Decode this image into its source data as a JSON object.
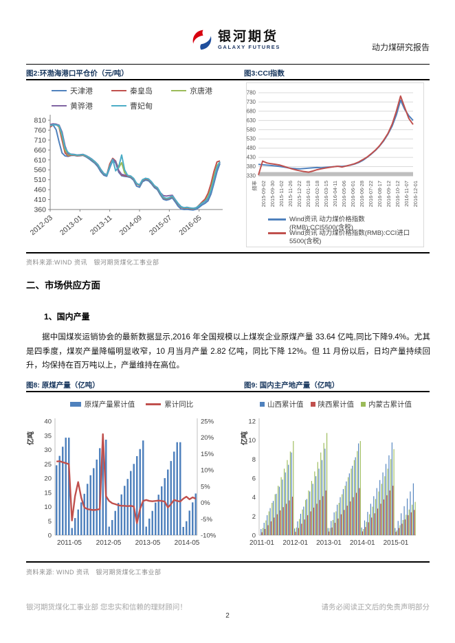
{
  "header": {
    "brand_cn": "银河期货",
    "brand_en": "GALAXY FUTURES",
    "report_type": "动力煤研究报告"
  },
  "sections": {
    "heading": "二、市场供应方面",
    "subheading": "1、国内产量",
    "paragraph": "据中国煤炭运销协会的最新数据显示,2016 年全国规模以上煤炭企业原煤产量 33.64 亿吨,同比下降9.4%。尤其是四季度，煤炭产量降幅明显收窄，10 月当月产量 2.82 亿吨，同比下降 12%。但 11 月份以后，日均产量持续回升，均保持在百万吨以上，产量维持在高位。"
  },
  "source_note_top": "资料来源:WIND 资讯　银河期货煤化工事业部",
  "source_note_bottom": "资料来源: WIND 资讯　银河期货煤化工事业部",
  "footer": {
    "left": "银河期货煤化工事业部 您忠实和信赖的理财顾问！",
    "right": "请务必阅读正文后的免责声明部分",
    "page": "2"
  },
  "chart_data": [
    {
      "id": "port-price",
      "type": "line",
      "title": "图2:环渤海港口平仓价（元/吨）",
      "ylim": [
        360,
        810
      ],
      "ystep": 50,
      "grid": false,
      "legend_position": "top",
      "n": 58,
      "xticks": [
        {
          "label": "2012-03",
          "i": 0
        },
        {
          "label": "2013-01",
          "i": 10
        },
        {
          "label": "2013-11",
          "i": 20
        },
        {
          "label": "2014-09",
          "i": 30
        },
        {
          "label": "2015-07",
          "i": 40
        },
        {
          "label": "2016-05",
          "i": 50
        }
      ],
      "series": [
        {
          "name": "天津港",
          "color": "#4F81BD",
          "values": [
            780,
            786,
            762,
            700,
            645,
            630,
            628,
            632,
            633,
            630,
            631,
            633,
            626,
            616,
            604,
            593,
            576,
            550,
            533,
            528,
            570,
            606,
            594,
            548,
            530,
            527,
            525,
            521,
            508,
            478,
            472,
            500,
            508,
            505,
            490,
            470,
            460,
            434,
            412,
            407,
            411,
            419,
            398,
            376,
            362,
            360,
            361,
            359,
            358,
            361,
            371,
            383,
            391,
            404,
            438,
            492,
            550,
            592
          ]
        },
        {
          "name": "秦皇岛",
          "color": "#C0504D",
          "values": [
            775,
            788,
            790,
            775,
            710,
            645,
            630,
            634,
            634,
            631,
            632,
            634,
            629,
            621,
            611,
            599,
            584,
            559,
            539,
            534,
            590,
            618,
            604,
            556,
            534,
            531,
            529,
            526,
            514,
            489,
            481,
            507,
            514,
            511,
            497,
            477,
            467,
            442,
            419,
            413,
            417,
            425,
            407,
            387,
            371,
            366,
            368,
            365,
            363,
            368,
            382,
            398,
            412,
            442,
            490,
            552,
            600,
            605
          ]
        },
        {
          "name": "京唐港",
          "color": "#9BBB59",
          "values": [
            782,
            789,
            787,
            778,
            730,
            660,
            634,
            637,
            636,
            633,
            634,
            636,
            630,
            622,
            612,
            600,
            586,
            561,
            541,
            534,
            580,
            613,
            601,
            570,
            596,
            545,
            531,
            528,
            516,
            491,
            483,
            509,
            516,
            513,
            499,
            479,
            469,
            444,
            421,
            415,
            419,
            427,
            409,
            389,
            373,
            368,
            370,
            367,
            365,
            368,
            380,
            393,
            402,
            425,
            465,
            525,
            580,
            600
          ]
        },
        {
          "name": "黄骅港",
          "color": "#8064A2",
          "values": [
            788,
            792,
            790,
            785,
            750,
            680,
            640,
            639,
            638,
            635,
            636,
            638,
            632,
            624,
            614,
            602,
            587,
            562,
            542,
            535,
            578,
            614,
            602,
            557,
            537,
            534,
            532,
            529,
            517,
            492,
            484,
            510,
            517,
            514,
            500,
            480,
            470,
            445,
            430,
            428,
            430,
            432,
            410,
            390,
            374,
            369,
            371,
            368,
            366,
            369,
            379,
            391,
            400,
            415,
            452,
            508,
            568,
            600
          ]
        },
        {
          "name": "曹妃甸",
          "color": "#4BACC6",
          "values": [
            783,
            788,
            786,
            782,
            740,
            670,
            648,
            638,
            637,
            634,
            635,
            637,
            631,
            623,
            613,
            601,
            586,
            561,
            541,
            534,
            577,
            612,
            555,
            575,
            635,
            560,
            532,
            529,
            517,
            492,
            484,
            510,
            517,
            514,
            500,
            480,
            470,
            445,
            422,
            416,
            420,
            428,
            410,
            390,
            374,
            369,
            371,
            368,
            366,
            369,
            379,
            392,
            401,
            418,
            455,
            512,
            572,
            601
          ]
        }
      ]
    },
    {
      "id": "cci",
      "type": "line",
      "title": "图3:CCI指数",
      "ylim": [
        330,
        780
      ],
      "ystep": 50,
      "grid": true,
      "legend_position": "bottom",
      "n": 38,
      "xticklabels": [
        "频率",
        "2015-09-02",
        "2015-09-30",
        "2015-11-02",
        "2015-11-26",
        "2015-12-22",
        "2016-01-18",
        "2016-02-18",
        "2016-03-15",
        "2016-04-11",
        "2016-05-06",
        "2016-06-01",
        "2016-06-28",
        "2016-07-22",
        "2016-08-17",
        "2016-09-12",
        "2016-10-12",
        "2016-11-07",
        "2016-12-01"
      ],
      "series": [
        {
          "name": "Wind资讯 动力煤价格指数(RMB):CCI5500(含税)",
          "color": "#4F81BD",
          "values": [
            392,
            390,
            388,
            386,
            384,
            381,
            378,
            374,
            371,
            369,
            368,
            370,
            372,
            374,
            375,
            374,
            376,
            378,
            380,
            382,
            381,
            384,
            388,
            394,
            402,
            414,
            430,
            448,
            468,
            492,
            520,
            556,
            600,
            660,
            740,
            690,
            655,
            630
          ]
        },
        {
          "name": "Wind资讯 动力煤价格指数(RMB):CCI进口5500(含税)",
          "color": "#C0504D",
          "values": [
            335,
            410,
            400,
            396,
            393,
            389,
            382,
            375,
            368,
            362,
            357,
            353,
            350,
            356,
            363,
            368,
            372,
            376,
            379,
            382,
            378,
            383,
            389,
            396,
            405,
            418,
            432,
            450,
            470,
            494,
            524,
            560,
            610,
            680,
            762,
            700,
            640,
            608
          ]
        }
      ]
    },
    {
      "id": "raw-coal",
      "type": "bar+line",
      "title": "图8: 原煤产量（亿吨）",
      "ylabel": "亿吨",
      "bar_ylim": [
        0,
        40
      ],
      "bar_ystep": 5,
      "line_ylim": [
        -10,
        25
      ],
      "line_ystep": 5,
      "xticklabels": [
        "2011-05",
        "2012-05",
        "2013-05",
        "2014-05"
      ],
      "bars": {
        "name": "原煤产量累计值",
        "color": "#4F81BD",
        "values": [
          24.5,
          27.8,
          31,
          34.2,
          34.2,
          2.5,
          6,
          9,
          11.5,
          14.5,
          18,
          21,
          23.5,
          26.5,
          30.5,
          33.5,
          33.5,
          3,
          5.3,
          8.5,
          11.3,
          14.3,
          17.3,
          19.7,
          22.5,
          25,
          27.7,
          30.2,
          33.2,
          3,
          5.8,
          8.5,
          11.4,
          14.2,
          17.1,
          20,
          23,
          26,
          29.3,
          32.6,
          32.6,
          2.9,
          4.9,
          8.6,
          11.5,
          14.6
        ]
      },
      "line": {
        "name": "累计同比",
        "color": "#C0504D",
        "values_pct": [
          12.6,
          12.7,
          12.4,
          12.1,
          11.8,
          -5.5,
          2.0,
          6.3,
          1.5,
          -1.5,
          -2.0,
          -2.2,
          -2.3,
          -2.2,
          -2.0,
          21.0,
          2.0,
          0.5,
          -0.2,
          -0.5,
          -0.8,
          -1.0,
          -1.0,
          -1.1,
          -1.0,
          -1.2,
          -6.3,
          -2.0,
          0.5,
          0.8,
          0.5,
          0.4,
          0.5,
          0.6,
          0.5,
          0.3,
          -1.5,
          -0.5,
          0.8,
          0.5,
          0.3,
          1.2,
          1.8,
          1.0,
          1.6,
          1.2
        ]
      }
    },
    {
      "id": "regions",
      "type": "bar",
      "title": "图9: 国内主产地产量（亿吨）",
      "ylabel": "亿吨",
      "ylim": [
        0,
        12
      ],
      "ystep": 2,
      "xticklabels": [
        "2011-01",
        "2012-01",
        "2013-01",
        "2014-01",
        "2015-01"
      ],
      "group_sizes": [
        11,
        11,
        11,
        11,
        7
      ],
      "series": [
        {
          "name": "山西累计值",
          "color": "#4F81BD",
          "values": [
            0.65,
            1.3,
            2.1,
            2.85,
            3.6,
            4.35,
            5.1,
            5.85,
            6.6,
            7.4,
            8.7,
            0.7,
            1.45,
            2.25,
            3.0,
            3.8,
            4.6,
            5.4,
            6.2,
            7.0,
            7.9,
            9.1,
            0.75,
            1.5,
            2.4,
            3.2,
            4.0,
            4.85,
            5.65,
            6.5,
            7.3,
            8.2,
            9.65,
            0.8,
            1.55,
            2.45,
            3.3,
            4.1,
            4.95,
            5.8,
            6.6,
            7.5,
            8.4,
            9.75,
            0.75,
            1.5,
            2.3,
            3.05,
            3.85,
            4.6,
            5.45
          ]
        },
        {
          "name": "陕西累计值",
          "color": "#C0504D",
          "values": [
            0.3,
            0.65,
            1.05,
            1.45,
            1.85,
            2.2,
            2.6,
            2.95,
            3.3,
            3.65,
            4.05,
            0.35,
            0.75,
            1.2,
            1.65,
            2.1,
            2.5,
            2.9,
            3.3,
            3.7,
            4.1,
            4.7,
            0.38,
            0.8,
            1.3,
            1.75,
            2.2,
            2.65,
            3.1,
            3.55,
            4.0,
            4.45,
            4.95,
            0.4,
            0.85,
            1.35,
            1.85,
            2.3,
            2.8,
            3.3,
            3.75,
            4.2,
            4.7,
            5.2,
            0.35,
            0.75,
            1.2,
            1.65,
            2.1,
            2.4,
            2.65
          ]
        },
        {
          "name": "内蒙古累计值",
          "color": "#9BBB59",
          "values": [
            0.75,
            1.55,
            2.5,
            3.4,
            4.3,
            5.2,
            6.1,
            7.0,
            7.9,
            8.8,
            9.9,
            0.8,
            1.7,
            2.7,
            3.7,
            4.7,
            5.7,
            6.7,
            7.7,
            8.7,
            9.7,
            10.75,
            0.75,
            1.6,
            2.5,
            3.4,
            4.3,
            5.2,
            6.1,
            7.0,
            7.9,
            8.85,
            9.9,
            0.65,
            1.4,
            2.2,
            3.0,
            3.8,
            4.6,
            5.4,
            6.2,
            7.0,
            8.0,
            9.05,
            0.5,
            1.05,
            1.6,
            2.15,
            2.7,
            3.2,
            3.5
          ]
        }
      ]
    }
  ]
}
